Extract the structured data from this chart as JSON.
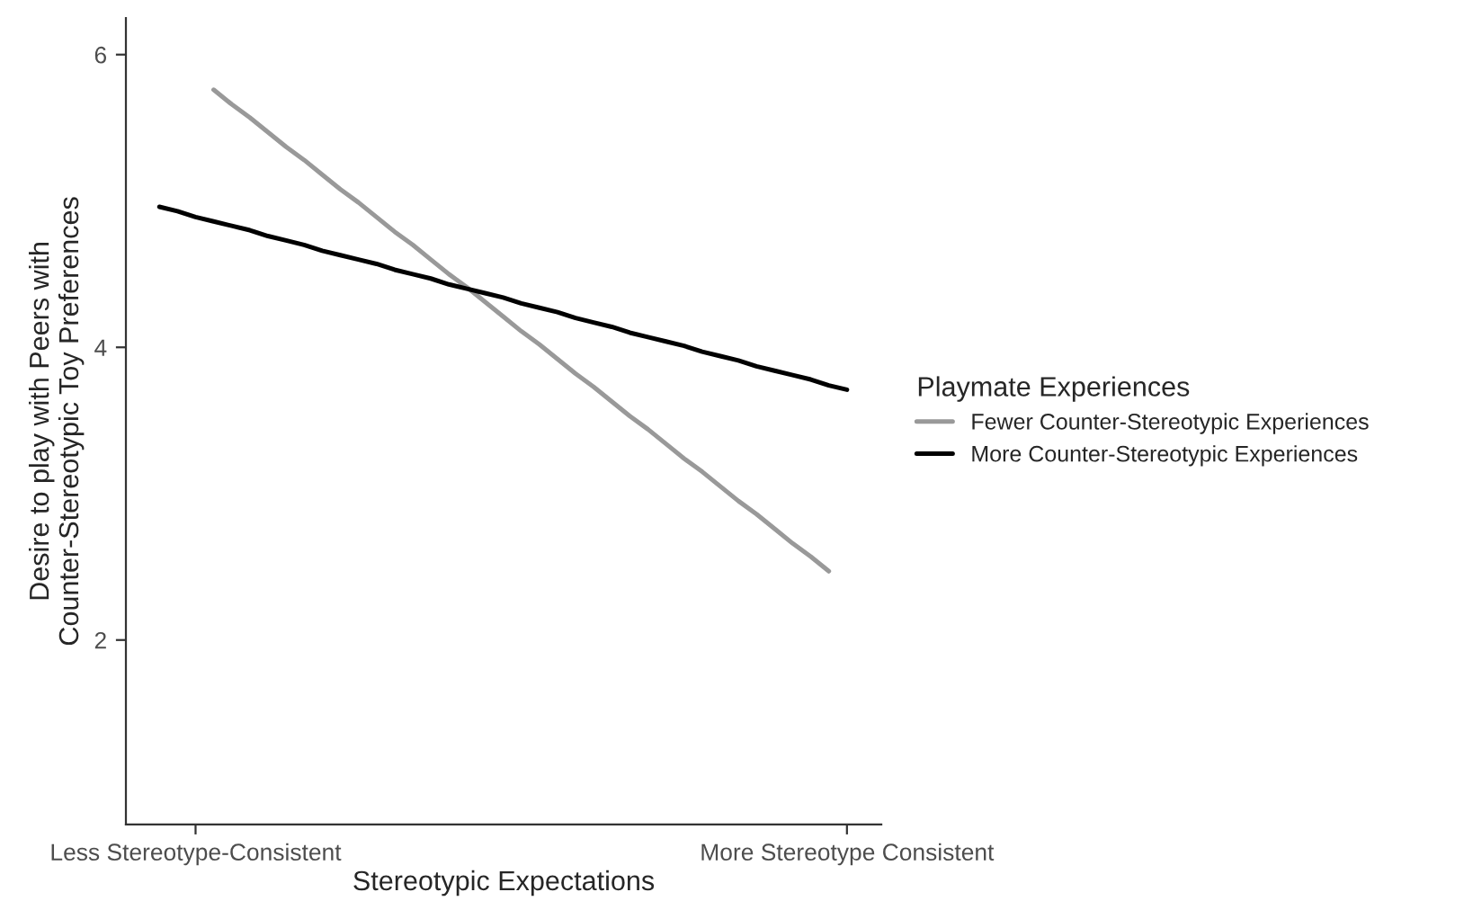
{
  "chart_data": {
    "type": "line",
    "xlabel": "Stereotypic Expectations",
    "ylabel": "Desire to play with Peers with\nCounter-Stereotypic Toy Preferences",
    "legend_title": "Playmate Experiences",
    "categories": [
      null,
      null,
      "Less Stereotype-Consistent",
      null,
      null,
      null,
      null,
      null,
      null,
      null,
      null,
      null,
      null,
      null,
      null,
      null,
      null,
      null,
      null,
      null,
      null,
      null,
      null,
      null,
      null,
      null,
      null,
      null,
      null,
      null,
      null,
      null,
      null,
      null,
      null,
      null,
      null,
      null,
      "More Stereotype Consistent",
      null
    ],
    "ylim": [
      0.74,
      6.25
    ],
    "yticks": [
      2,
      4,
      6
    ],
    "grid": false,
    "legend": "right",
    "series": [
      {
        "name": "Fewer Counter-Stereotypic Experiences",
        "color": "#999999",
        "values": [
          null,
          null,
          null,
          5.76,
          5.66,
          5.57,
          5.47,
          5.37,
          5.28,
          5.18,
          5.08,
          4.99,
          4.89,
          4.79,
          4.7,
          4.6,
          4.5,
          4.41,
          4.31,
          4.21,
          4.11,
          4.02,
          3.92,
          3.82,
          3.73,
          3.63,
          3.53,
          3.44,
          3.34,
          3.24,
          3.15,
          3.05,
          2.95,
          2.86,
          2.76,
          2.66,
          2.57,
          2.47,
          null,
          null
        ]
      },
      {
        "name": "More Counter-Stereotypic Experiences",
        "color": "#000000",
        "values": [
          4.96,
          4.93,
          4.89,
          4.86,
          4.83,
          4.8,
          4.76,
          4.73,
          4.7,
          4.66,
          4.63,
          4.6,
          4.57,
          4.53,
          4.5,
          4.47,
          4.43,
          4.4,
          4.37,
          4.34,
          4.3,
          4.27,
          4.24,
          4.2,
          4.17,
          4.14,
          4.1,
          4.07,
          4.04,
          4.01,
          3.97,
          3.94,
          3.91,
          3.87,
          3.84,
          3.81,
          3.78,
          3.74,
          3.71,
          null
        ]
      }
    ]
  }
}
